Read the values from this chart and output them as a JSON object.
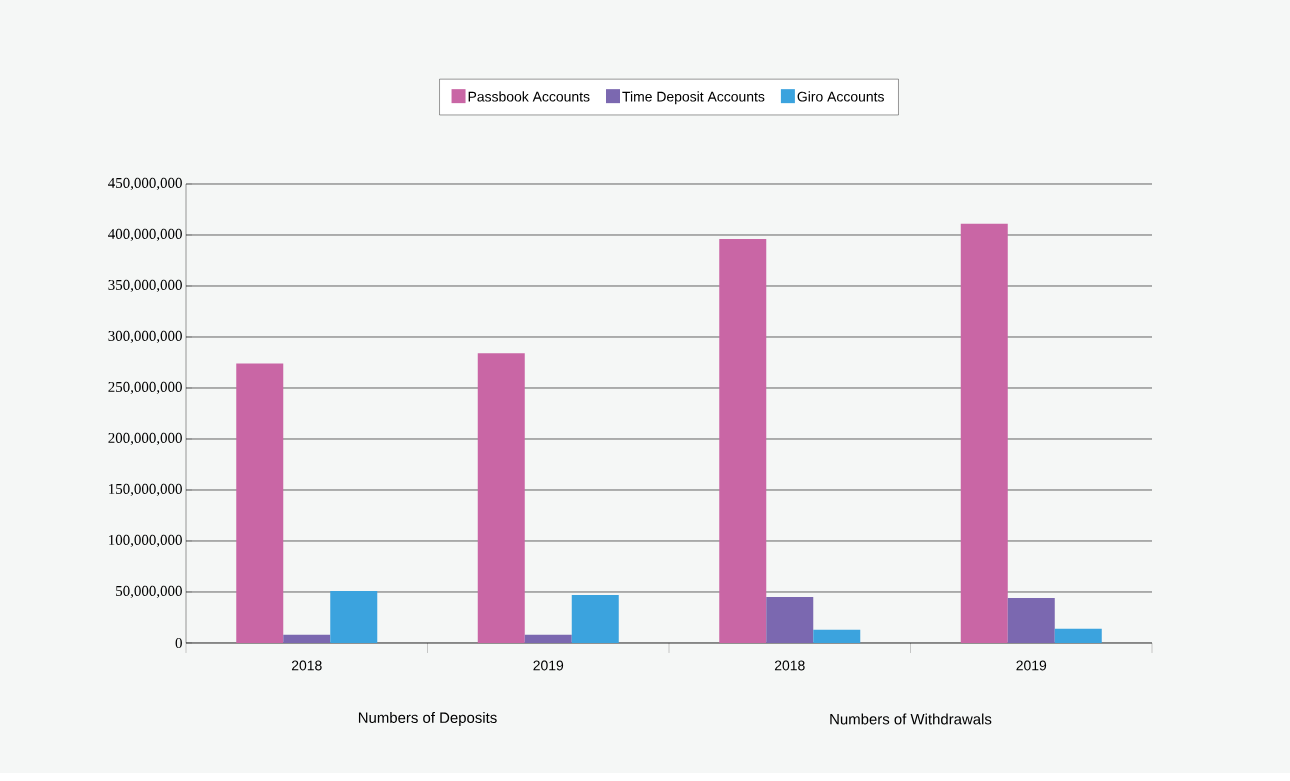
{
  "chart_data": {
    "type": "bar",
    "categories": [
      "2018",
      "2019",
      "2018",
      "2019"
    ],
    "series": [
      {
        "name": "Passbook Accounts",
        "color": "#c966a5",
        "values": [
          274000000,
          284000000,
          396000000,
          411000000
        ]
      },
      {
        "name": "Time Deposit Accounts",
        "color": "#7b68b0",
        "values": [
          8000000,
          8000000,
          45000000,
          44000000
        ]
      },
      {
        "name": "Giro Accounts",
        "color": "#3ba3de",
        "values": [
          51000000,
          47000000,
          13000000,
          14000000
        ]
      }
    ],
    "ylim": [
      0,
      450000000
    ],
    "yticks": [
      0,
      {
        "value": 50000000,
        "label": "50,000,000"
      },
      {
        "value": 100000000,
        "label": "100,000,000"
      },
      {
        "value": 150000000,
        "label": "150,000,000"
      },
      {
        "value": 200000000,
        "label": "200,000,000"
      },
      {
        "value": 250000000,
        "label": "250,000,000"
      },
      {
        "value": 300000000,
        "label": "300,000,000"
      },
      {
        "value": 350000000,
        "label": "350,000,000"
      },
      {
        "value": 400000000,
        "label": "400,000,000"
      },
      {
        "value": 450000000,
        "label": "450,000,000"
      }
    ],
    "grid": "y",
    "legend": "top",
    "annotations": [
      "Numbers of Deposits",
      "Numbers of Withdrawals"
    ]
  }
}
